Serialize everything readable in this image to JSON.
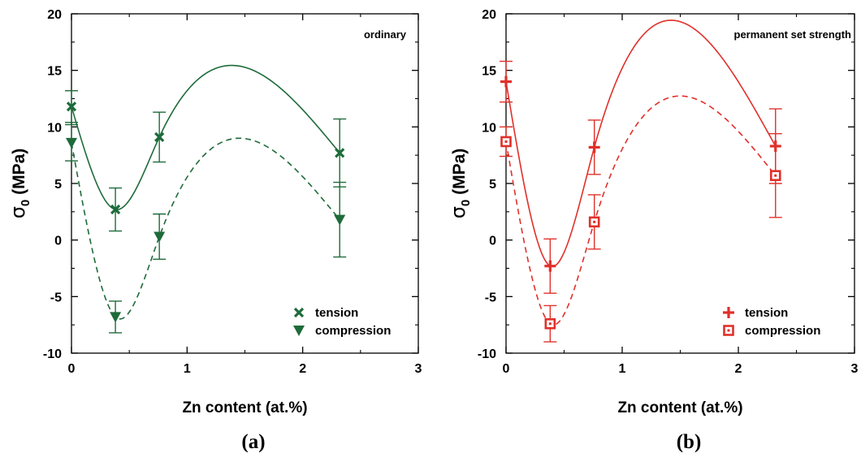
{
  "chart_data": [
    {
      "type": "scatter",
      "panel_label": "(a)",
      "annotation": "ordinary",
      "xlabel": "Zn content (at.%)",
      "ylabel_symbol": "σ",
      "ylabel_subscript": "0",
      "ylabel_unit": " (MPa)",
      "xlim": [
        0,
        3
      ],
      "ylim": [
        -10,
        20
      ],
      "xticks": [
        "0",
        "1",
        "2",
        "3"
      ],
      "yticks": [
        "-10",
        "-5",
        "0",
        "5",
        "10",
        "15",
        "20"
      ],
      "color": "#1e6b3a",
      "series": [
        {
          "name": "tension",
          "marker": "x",
          "line": "solid",
          "x": [
            0,
            0.38,
            0.76,
            2.32
          ],
          "y": [
            11.8,
            2.7,
            9.1,
            7.7
          ],
          "err": [
            1.4,
            1.9,
            2.2,
            3.0
          ]
        },
        {
          "name": "compression",
          "marker": "triangle-down",
          "line": "dashed",
          "x": [
            0,
            0.38,
            0.76,
            2.32
          ],
          "y": [
            8.6,
            -6.8,
            0.3,
            1.8
          ],
          "err": [
            1.6,
            1.4,
            2.0,
            3.3
          ]
        }
      ]
    },
    {
      "type": "scatter",
      "panel_label": "(b)",
      "annotation": "permanent set strength",
      "xlabel": "Zn content (at.%)",
      "ylabel_symbol": "σ",
      "ylabel_subscript": "0",
      "ylabel_unit": " (MPa)",
      "xlim": [
        0,
        3
      ],
      "ylim": [
        -10,
        20
      ],
      "xticks": [
        "0",
        "1",
        "2",
        "3"
      ],
      "yticks": [
        "-10",
        "-5",
        "0",
        "5",
        "10",
        "15",
        "20"
      ],
      "color": "#e0302a",
      "series": [
        {
          "name": "tension",
          "marker": "plus",
          "line": "solid",
          "x": [
            0,
            0.38,
            0.76,
            2.32
          ],
          "y": [
            14.0,
            -2.3,
            8.2,
            8.3
          ],
          "err": [
            1.8,
            2.4,
            2.4,
            3.3
          ]
        },
        {
          "name": "compression",
          "marker": "square-open",
          "line": "dashed",
          "x": [
            0,
            0.38,
            0.76,
            2.32
          ],
          "y": [
            8.7,
            -7.4,
            1.6,
            5.7
          ],
          "err": [
            1.3,
            1.6,
            2.4,
            3.7
          ]
        }
      ]
    }
  ]
}
